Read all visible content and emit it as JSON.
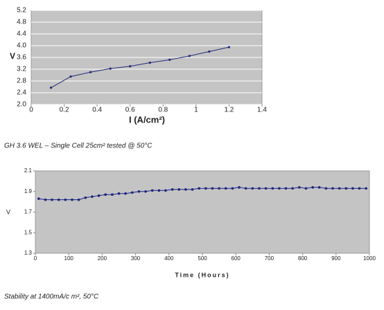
{
  "chart_data": [
    {
      "type": "line",
      "xlabel": "I (A/cm²)",
      "ylabel": "V",
      "caption": "GH 3.6 WEL – Single Cell 25cm² tested @ 50°C",
      "x": [
        0.12,
        0.24,
        0.36,
        0.48,
        0.6,
        0.72,
        0.84,
        0.96,
        1.08,
        1.2
      ],
      "series": [
        {
          "color": "#1f2a78",
          "values": [
            2.57,
            2.95,
            3.1,
            3.22,
            3.3,
            3.42,
            3.52,
            3.65,
            3.8,
            3.95
          ]
        }
      ],
      "xlim": [
        0,
        1.4
      ],
      "xticks": [
        0,
        0.2,
        0.4,
        0.6,
        0.8,
        1,
        1.2,
        1.4
      ],
      "ylim": [
        2.0,
        5.2
      ],
      "yticks": [
        {
          "value": 2.0,
          "label": "2.0"
        },
        2.4,
        2.8,
        3.2,
        3.6,
        {
          "value": 4.0,
          "label": "4.0"
        },
        4.4,
        4.8,
        5.2
      ],
      "grid": true
    },
    {
      "type": "line",
      "xlabel": "Time (Hours)",
      "ylabel": "V",
      "caption": "Stability at 1400mA/c m², 50°C",
      "x": [
        10,
        30,
        50,
        70,
        90,
        110,
        130,
        150,
        170,
        190,
        210,
        230,
        250,
        270,
        290,
        310,
        330,
        350,
        370,
        390,
        410,
        430,
        450,
        470,
        490,
        510,
        530,
        550,
        570,
        590,
        610,
        630,
        650,
        670,
        690,
        710,
        730,
        750,
        770,
        790,
        810,
        830,
        850,
        870,
        890,
        910,
        930,
        950,
        970,
        990
      ],
      "series": [
        {
          "color": "#1a237e",
          "values": [
            1.83,
            1.82,
            1.82,
            1.82,
            1.82,
            1.82,
            1.82,
            1.84,
            1.85,
            1.86,
            1.87,
            1.87,
            1.88,
            1.88,
            1.89,
            1.9,
            1.9,
            1.91,
            1.91,
            1.91,
            1.92,
            1.92,
            1.92,
            1.92,
            1.93,
            1.93,
            1.93,
            1.93,
            1.93,
            1.93,
            1.94,
            1.93,
            1.93,
            1.93,
            1.93,
            1.93,
            1.93,
            1.93,
            1.93,
            1.94,
            1.93,
            1.94,
            1.94,
            1.93,
            1.93,
            1.93,
            1.93,
            1.93,
            1.93,
            1.93
          ]
        }
      ],
      "xlim": [
        0,
        1000
      ],
      "xticks": [
        0,
        100,
        200,
        300,
        400,
        500,
        600,
        700,
        800,
        900,
        1000
      ],
      "ylim": [
        1.3,
        2.1
      ],
      "yticks": [
        1.3,
        1.5,
        1.7,
        1.9,
        2.1
      ],
      "grid": false
    }
  ]
}
